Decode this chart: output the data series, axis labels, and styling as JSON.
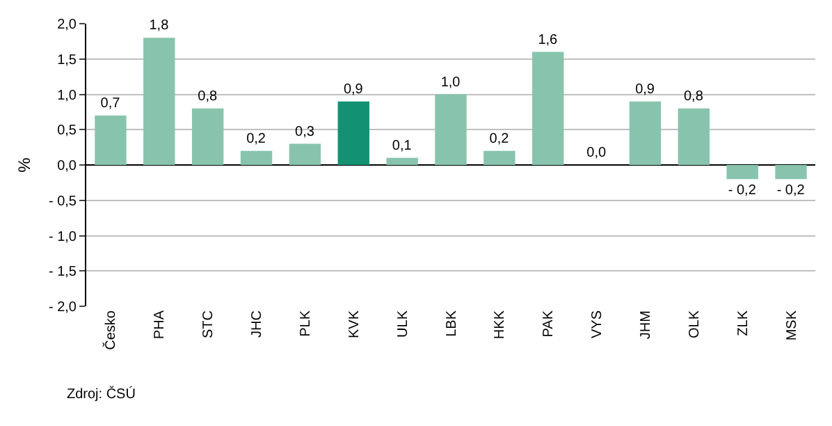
{
  "chart_data": {
    "type": "bar",
    "ylabel": "%",
    "categories": [
      "Česko",
      "PHA",
      "STC",
      "JHC",
      "PLK",
      "KVK",
      "ULK",
      "LBK",
      "HKK",
      "PAK",
      "VYS",
      "JHM",
      "OLK",
      "ZLK",
      "MSK"
    ],
    "values": [
      0.7,
      1.8,
      0.8,
      0.2,
      0.3,
      0.9,
      0.1,
      1.0,
      0.2,
      1.6,
      0.0,
      0.9,
      0.8,
      -0.2,
      -0.2
    ],
    "colors": [
      "#88c4ad",
      "#88c4ad",
      "#88c4ad",
      "#88c4ad",
      "#88c4ad",
      "#139273",
      "#88c4ad",
      "#88c4ad",
      "#88c4ad",
      "#88c4ad",
      "#88c4ad",
      "#88c4ad",
      "#88c4ad",
      "#88c4ad",
      "#88c4ad"
    ],
    "value_labels": [
      "0,7",
      "1,8",
      "0,8",
      "0,2",
      "0,3",
      "0,9",
      "0,1",
      "1,0",
      "0,2",
      "1,6",
      "0,0",
      "0,9",
      "0,8",
      "- 0,2",
      "- 0,2"
    ],
    "ylim": [
      -2.0,
      2.0
    ],
    "yticks": [
      {
        "value": -2.0,
        "label": "- 2,0"
      },
      {
        "value": -1.5,
        "label": "- 1,5"
      },
      {
        "value": -1.0,
        "label": "- 1,0"
      },
      {
        "value": -0.5,
        "label": "- 0,5"
      },
      {
        "value": 0.0,
        "label": "0,0"
      },
      {
        "value": 0.5,
        "label": "0,5"
      },
      {
        "value": 1.0,
        "label": "1,0"
      },
      {
        "value": 1.5,
        "label": "1,5"
      },
      {
        "value": 2.0,
        "label": "2,0"
      }
    ],
    "grid": "y",
    "annotations": [
      "Zdroj: ČSÚ"
    ]
  }
}
